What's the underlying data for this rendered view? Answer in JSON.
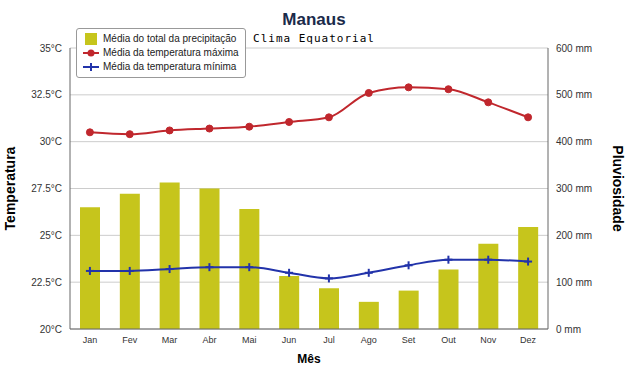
{
  "chart_data": {
    "type": "bar",
    "title": "Manaus",
    "subtitle": "Clima Equatorial",
    "x_label": "Mês",
    "y_label": "Temperatura",
    "y2_label": "Pluviosidade",
    "categories": [
      "Jan",
      "Fev",
      "Mar",
      "Abr",
      "Mai",
      "Jun",
      "Jul",
      "Ago",
      "Set",
      "Out",
      "Nov",
      "Dez"
    ],
    "series": [
      {
        "name": "Média do total da precipitação",
        "type": "bar",
        "axis": "y2",
        "color": "#c6c51c",
        "values": [
          260,
          289,
          313,
          300,
          256,
          113,
          87,
          58,
          82,
          127,
          182,
          218
        ]
      },
      {
        "name": "Média da temperatura máxima",
        "type": "line",
        "color": "#c0272d",
        "marker": "circle",
        "values": [
          30.5,
          30.4,
          30.6,
          30.7,
          30.8,
          31.05,
          31.3,
          32.6,
          32.9,
          32.8,
          32.1,
          31.3
        ]
      },
      {
        "name": "Média da temperatura mínima",
        "type": "line",
        "color": "#2233aa",
        "marker": "cross",
        "values": [
          23.1,
          23.1,
          23.2,
          23.3,
          23.3,
          23.0,
          22.7,
          23.0,
          23.4,
          23.7,
          23.7,
          23.6
        ]
      }
    ],
    "ylim": [
      20,
      35
    ],
    "yticks": [
      {
        "value": 20,
        "label": "20°C"
      },
      {
        "value": 22.5,
        "label": "22.5°C"
      },
      {
        "value": 25,
        "label": "25°C"
      },
      {
        "value": 27.5,
        "label": "27.5°C"
      },
      {
        "value": 30,
        "label": "30°C"
      },
      {
        "value": 32.5,
        "label": "32.5°C"
      },
      {
        "value": 35,
        "label": "35°C"
      }
    ],
    "y2lim": [
      0,
      600
    ],
    "y2ticks": [
      {
        "value": 0,
        "label": "0 mm"
      },
      {
        "value": 100,
        "label": "100 mm"
      },
      {
        "value": 200,
        "label": "200 mm"
      },
      {
        "value": 300,
        "label": "300 mm"
      },
      {
        "value": 400,
        "label": "400 mm"
      },
      {
        "value": 500,
        "label": "500 mm"
      },
      {
        "value": 600,
        "label": "600 mm"
      }
    ],
    "grid": true,
    "legend": "upper left"
  }
}
